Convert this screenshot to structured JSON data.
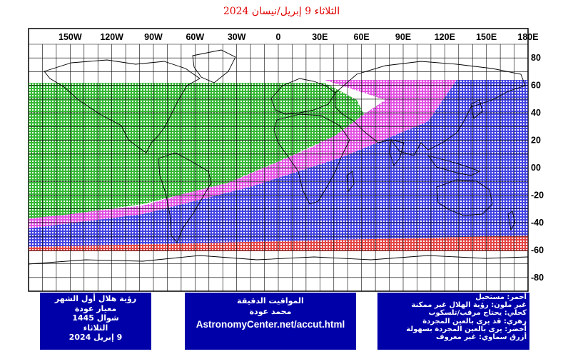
{
  "title": "الثلاثاء 9 إبريل/نيسان 2024",
  "map": {
    "lon_labels": [
      "150W",
      "120W",
      "90W",
      "60W",
      "30W",
      "0",
      "30E",
      "60E",
      "90E",
      "120E",
      "150E",
      "180E"
    ],
    "lat_labels": [
      "80",
      "60",
      "40",
      "20",
      "00",
      "-20",
      "-40",
      "-60",
      "-80"
    ],
    "colors": {
      "red": "#e03030",
      "magenta": "#e040e0",
      "blue": "#3030e0",
      "green": "#20b020",
      "grid": "#000000"
    }
  },
  "visibility_bands": [
    {
      "key": "green",
      "color": "#20b020"
    },
    {
      "key": "magenta",
      "color": "#e040e0"
    },
    {
      "key": "blue",
      "color": "#3030e0"
    },
    {
      "key": "red",
      "color": "#e03030"
    }
  ],
  "panel_left": {
    "line1": "رؤية هلال أول الشهر",
    "line2": "معيار عودة",
    "line3": "شوال 1445",
    "line4": "الثلاثاء",
    "line5": "9 إبريل 2024"
  },
  "panel_center": {
    "line1": "المواقيت الدقيقة",
    "line2": "محمد عودة",
    "url": "AstronomyCenter.net/accut.html"
  },
  "panel_right": {
    "legend": [
      "أحمر: مستحيل",
      "غير ملون: رؤية الهلال غير ممكنة",
      "كحلي: يحتاج مرقب/تلسكوب",
      "زهري: قد يرى بالعين المجردة",
      "أخضر: يرى بالعين المجردة بسهولة",
      "أزرق سماوي: غير معروف"
    ]
  }
}
